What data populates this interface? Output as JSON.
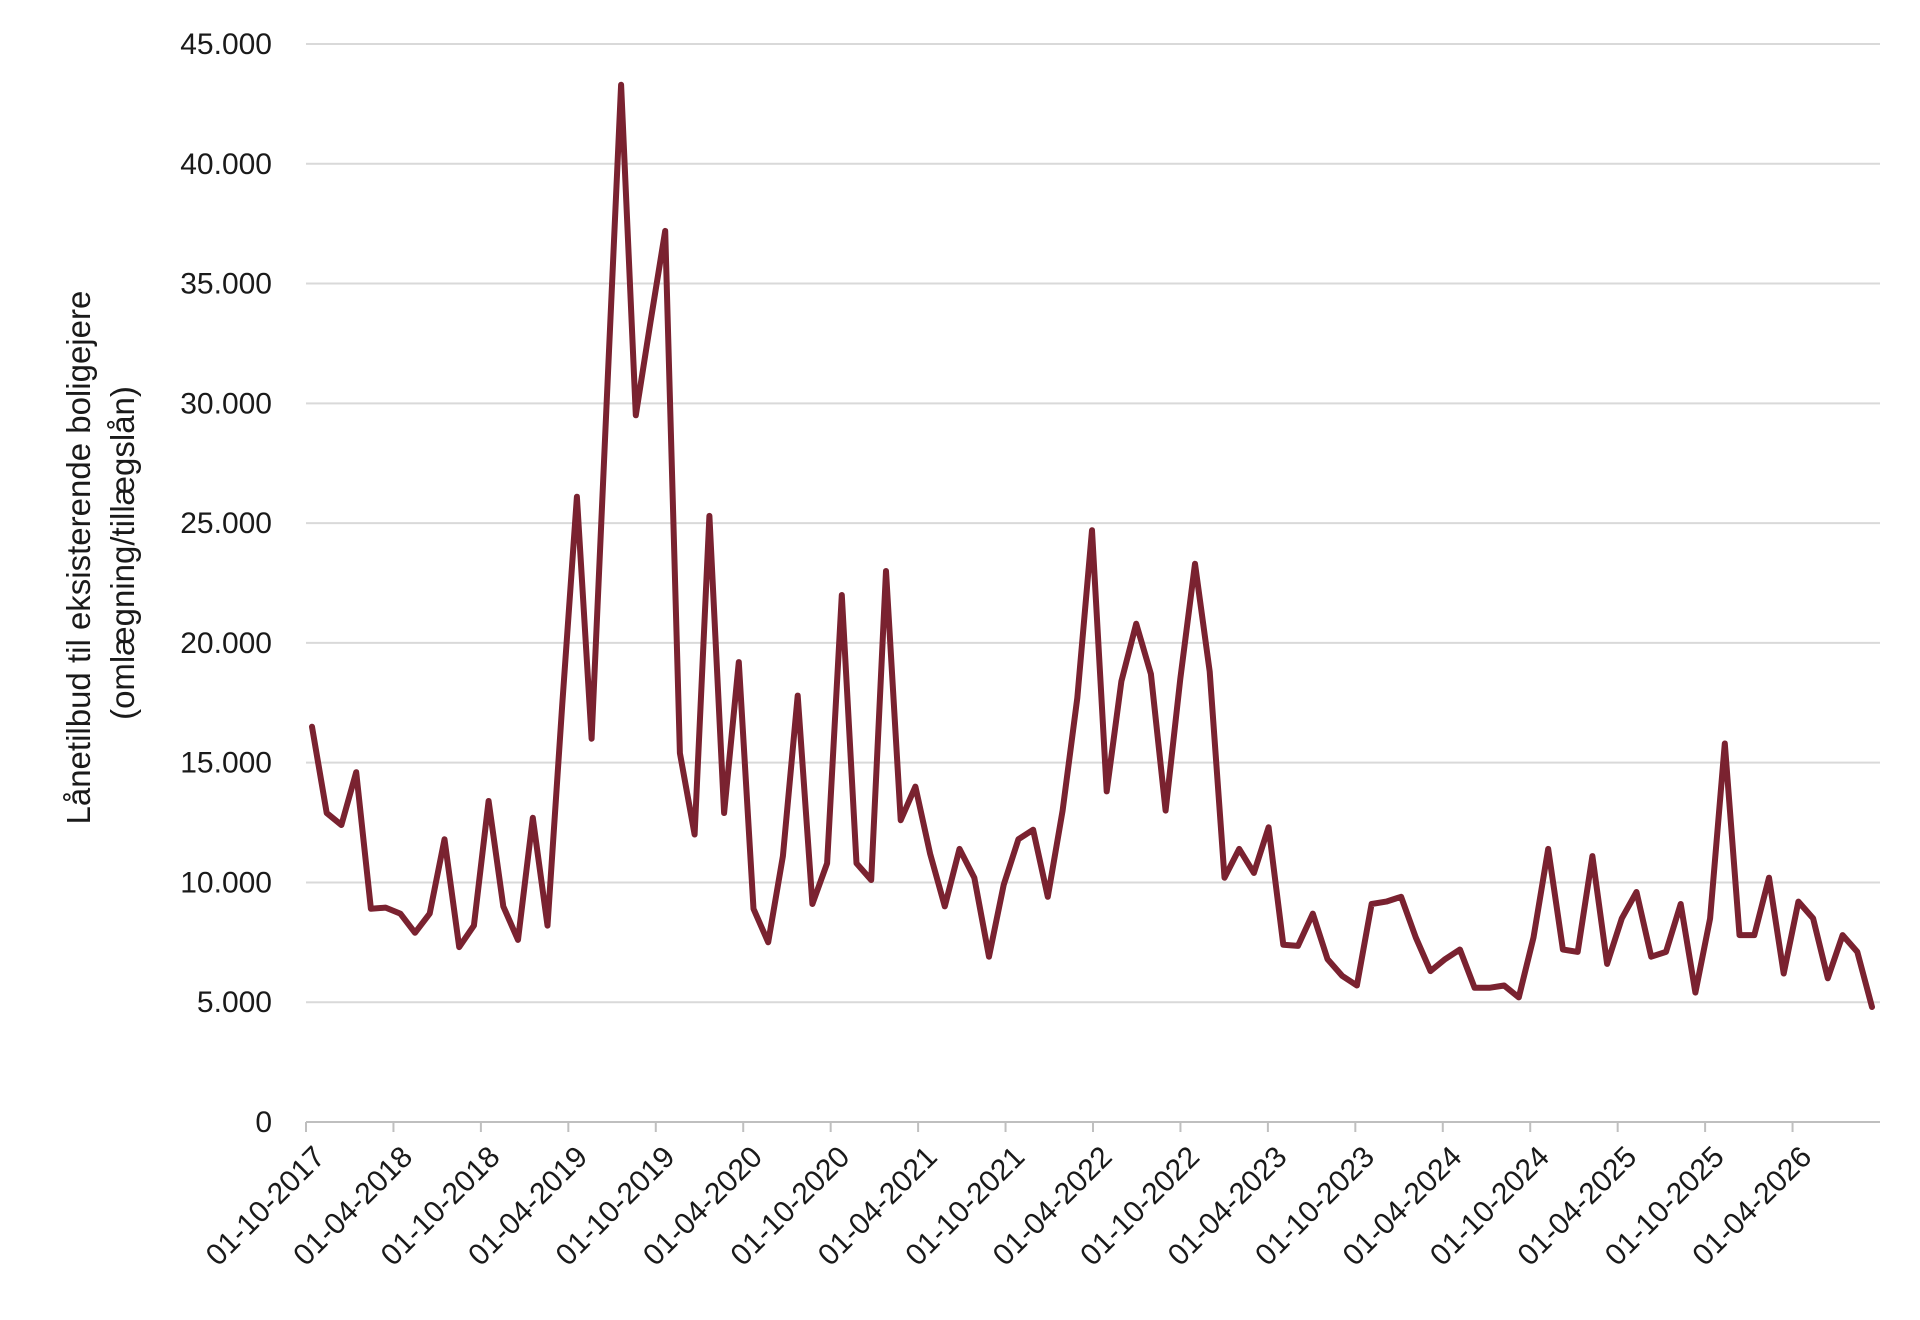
{
  "chart_data": {
    "type": "line",
    "ylabel_line1": "Lånetilbud til eksisterende boligejere",
    "ylabel_line2": "(omlægning/tillægslån)",
    "ylim": [
      0,
      45000
    ],
    "yticks": [
      0,
      5000,
      10000,
      15000,
      20000,
      25000,
      30000,
      35000,
      40000,
      45000
    ],
    "ytick_labels": [
      "0",
      "5.000",
      "10.000",
      "15.000",
      "20.000",
      "25.000",
      "30.000",
      "35.000",
      "40.000",
      "45.000"
    ],
    "xticks": [
      "01-10-2017",
      "01-04-2018",
      "01-10-2018",
      "01-04-2019",
      "01-10-2019",
      "01-04-2020",
      "01-10-2020",
      "01-04-2021",
      "01-10-2021",
      "01-04-2022",
      "01-10-2022",
      "01-04-2023",
      "01-10-2023",
      "01-04-2024",
      "01-10-2024",
      "01-04-2025",
      "01-10-2025",
      "01-04-2026"
    ],
    "x_start": "01-10-2017",
    "x_end": "01-10-2026",
    "grid": true,
    "legend": "none",
    "color": "#7a2230",
    "series": [
      {
        "values": [
          16500,
          12900,
          12400,
          14600,
          8900,
          8950,
          8700,
          7900,
          8700,
          11800,
          7300,
          8200,
          13400,
          9000,
          7600,
          12700,
          8200,
          17400,
          26100,
          16000,
          29700,
          43300,
          29500,
          33400,
          37200,
          15400,
          12000,
          25300,
          12900,
          19200,
          8900,
          7500,
          11100,
          17800,
          9100,
          10800,
          22000,
          10800,
          10100,
          23000,
          12600,
          14000,
          11200,
          9000,
          11400,
          10200,
          6900,
          9900,
          11800,
          12200,
          9400,
          13000,
          17700,
          24700,
          13800,
          18400,
          20800,
          18700,
          13000,
          18500,
          23300,
          18800,
          10200,
          11400,
          10400,
          12300,
          7400,
          7350,
          8700,
          6800,
          6100,
          5700,
          9100,
          9200,
          9400,
          7700,
          6300,
          6800,
          7200,
          5600,
          5600,
          5700,
          5200,
          7700,
          11400,
          7200,
          7100,
          11100,
          6600,
          8500,
          9600,
          6900,
          7100,
          9100,
          5400,
          8500,
          15800,
          7800,
          7800,
          10200,
          6200,
          9200,
          8500,
          6000,
          7800,
          7100,
          4800
        ]
      }
    ]
  }
}
